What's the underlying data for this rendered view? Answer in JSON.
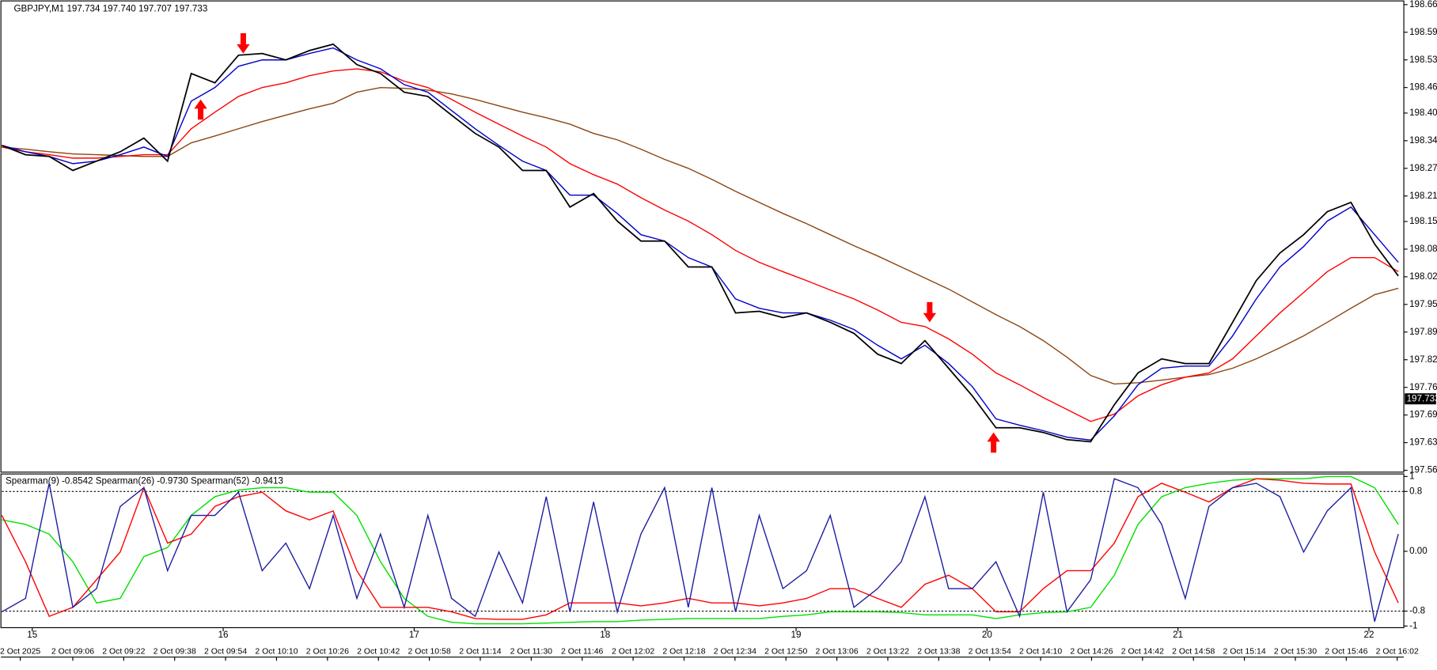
{
  "chart_data": [
    {
      "type": "line",
      "title": "GBPJPY,M1  197.734 197.740 197.707 197.733",
      "ylim": [
        197.565,
        198.66
      ],
      "yticks": [
        {
          "value": 198.66,
          "label": "198.660"
        },
        198.595,
        {
          "value": 198.53,
          "label": "198.530"
        },
        198.465,
        198.405,
        {
          "value": 198.34,
          "label": "198.340"
        },
        198.275,
        {
          "value": 198.21,
          "label": "198.210"
        },
        {
          "value": 198.15,
          "label": "198.150"
        },
        198.085,
        {
          "value": 198.02,
          "label": "198.020"
        },
        197.955,
        {
          "value": 197.89,
          "label": "197.890"
        },
        197.825,
        {
          "value": 197.76,
          "label": "197.760"
        },
        197.695,
        {
          "value": 197.63,
          "label": "197.630"
        },
        197.565
      ],
      "last_price": 197.733,
      "series": [
        {
          "color": "#8b4513",
          "values": [
            198.325,
            198.32,
            198.314,
            198.309,
            198.307,
            198.305,
            198.303,
            198.303,
            198.335,
            198.351,
            198.368,
            198.385,
            198.4,
            198.415,
            198.428,
            198.454,
            198.465,
            198.463,
            198.459,
            198.45,
            198.437,
            198.422,
            198.407,
            198.394,
            198.379,
            198.357,
            198.342,
            198.32,
            198.296,
            198.275,
            198.249,
            198.221,
            198.195,
            198.169,
            198.145,
            198.119,
            198.093,
            198.069,
            198.043,
            198.017,
            197.991,
            197.961,
            197.931,
            197.903,
            197.87,
            197.831,
            197.788,
            197.768,
            197.771,
            197.777,
            197.784,
            197.79,
            197.805,
            197.827,
            197.853,
            197.881,
            197.913,
            197.946,
            197.978,
            197.993
          ]
        },
        {
          "color": "#ff0000",
          "values": [
            198.325,
            198.314,
            198.307,
            198.299,
            198.299,
            198.303,
            198.307,
            198.307,
            198.368,
            198.407,
            198.444,
            198.465,
            198.476,
            198.493,
            198.504,
            198.509,
            198.502,
            198.48,
            198.465,
            198.437,
            198.407,
            198.379,
            198.351,
            198.325,
            198.286,
            198.26,
            198.238,
            198.206,
            198.177,
            198.151,
            198.119,
            198.082,
            198.054,
            198.032,
            198.011,
            197.989,
            197.968,
            197.942,
            197.913,
            197.903,
            197.874,
            197.838,
            197.794,
            197.766,
            197.736,
            197.708,
            197.68,
            197.697,
            197.74,
            197.766,
            197.784,
            197.794,
            197.827,
            197.881,
            197.935,
            197.983,
            198.032,
            198.065,
            198.065,
            198.032
          ]
        },
        {
          "color": "#0000cc",
          "values": [
            198.329,
            198.314,
            198.303,
            198.286,
            198.292,
            198.307,
            198.325,
            198.303,
            198.433,
            198.465,
            198.515,
            198.53,
            198.53,
            198.545,
            198.558,
            198.53,
            198.509,
            198.472,
            198.454,
            198.411,
            198.368,
            198.329,
            198.292,
            198.27,
            198.212,
            198.212,
            198.169,
            198.119,
            198.104,
            198.065,
            198.043,
            197.968,
            197.946,
            197.935,
            197.935,
            197.918,
            197.896,
            197.859,
            197.827,
            197.859,
            197.816,
            197.762,
            197.686,
            197.671,
            197.658,
            197.643,
            197.636,
            197.693,
            197.766,
            197.805,
            197.81,
            197.81,
            197.881,
            197.968,
            198.043,
            198.091,
            198.151,
            198.184,
            198.119,
            198.054
          ]
        },
        {
          "color": "#000000",
          "values": [
            198.329,
            198.307,
            198.303,
            198.27,
            198.292,
            198.314,
            198.346,
            198.292,
            198.498,
            198.476,
            198.541,
            198.545,
            198.53,
            198.552,
            198.567,
            198.519,
            198.498,
            198.454,
            198.444,
            198.4,
            198.357,
            198.325,
            198.27,
            198.27,
            198.184,
            198.216,
            198.151,
            198.104,
            198.104,
            198.043,
            198.043,
            197.935,
            197.939,
            197.924,
            197.935,
            197.913,
            197.887,
            197.838,
            197.816,
            197.87,
            197.805,
            197.74,
            197.665,
            197.665,
            197.654,
            197.637,
            197.632,
            197.719,
            197.794,
            197.827,
            197.816,
            197.816,
            197.913,
            198.011,
            198.076,
            198.119,
            198.173,
            198.195,
            198.097,
            198.022
          ]
        }
      ],
      "arrows": [
        {
          "index": 10.2,
          "value": 198.545,
          "dir": "down"
        },
        {
          "index": 8.4,
          "value": 198.437,
          "dir": "up"
        },
        {
          "index": 39.2,
          "value": 197.913,
          "dir": "down"
        },
        {
          "index": 41.9,
          "value": 197.654,
          "dir": "up"
        }
      ],
      "arrow_color": "#ff0000"
    },
    {
      "type": "line",
      "title": "Spearman(9) -0.8542  Spearman(26) -0.9730  Spearman(52) -0.9413",
      "ylim": [
        -1,
        1
      ],
      "yticks": [
        1,
        0.8,
        {
          "value": 0,
          "label": "0.00"
        },
        -0.8,
        -1
      ],
      "levels": [
        0.8,
        -0.8
      ],
      "series": [
        {
          "color": "#00e000",
          "values": [
            0.42,
            0.36,
            0.23,
            -0.14,
            -0.69,
            -0.63,
            -0.07,
            0.05,
            0.48,
            0.73,
            0.82,
            0.85,
            0.85,
            0.79,
            0.79,
            0.48,
            -0.14,
            -0.63,
            -0.87,
            -0.95,
            -0.97,
            -0.97,
            -0.97,
            -0.96,
            -0.95,
            -0.94,
            -0.94,
            -0.92,
            -0.91,
            -0.9,
            -0.9,
            -0.9,
            -0.9,
            -0.87,
            -0.85,
            -0.81,
            -0.81,
            -0.81,
            -0.82,
            -0.85,
            -0.85,
            -0.85,
            -0.9,
            -0.85,
            -0.82,
            -0.81,
            -0.75,
            -0.32,
            0.36,
            0.73,
            0.85,
            0.91,
            0.95,
            0.97,
            0.97,
            0.97,
            1.0,
            1.0,
            0.85,
            0.36
          ]
        },
        {
          "color": "#ff0000",
          "values": [
            0.48,
            -0.14,
            -0.87,
            -0.75,
            -0.38,
            -0.01,
            0.85,
            0.11,
            0.23,
            0.6,
            0.73,
            0.79,
            0.54,
            0.42,
            0.54,
            -0.26,
            -0.75,
            -0.75,
            -0.75,
            -0.81,
            -0.9,
            -0.91,
            -0.91,
            -0.85,
            -0.69,
            -0.69,
            -0.69,
            -0.73,
            -0.69,
            -0.63,
            -0.69,
            -0.69,
            -0.73,
            -0.69,
            -0.63,
            -0.5,
            -0.5,
            -0.63,
            -0.75,
            -0.44,
            -0.32,
            -0.5,
            -0.81,
            -0.81,
            -0.5,
            -0.26,
            -0.26,
            0.11,
            0.73,
            0.91,
            0.79,
            0.66,
            0.85,
            0.97,
            0.95,
            0.91,
            0.9,
            0.9,
            -0.01,
            -0.69
          ]
        },
        {
          "color": "#1e1ea0",
          "values": [
            -0.81,
            -0.63,
            0.91,
            -0.75,
            -0.5,
            0.6,
            0.85,
            -0.26,
            0.48,
            0.48,
            0.79,
            -0.26,
            0.11,
            -0.5,
            0.48,
            -0.63,
            0.23,
            -0.75,
            0.48,
            -0.63,
            -0.87,
            -0.01,
            -0.69,
            0.73,
            -0.81,
            0.66,
            -0.81,
            0.23,
            0.85,
            -0.75,
            0.85,
            -0.81,
            0.48,
            -0.5,
            -0.26,
            0.48,
            -0.75,
            -0.5,
            -0.14,
            0.73,
            -0.5,
            -0.5,
            -0.14,
            -0.87,
            0.79,
            -0.81,
            -0.38,
            0.97,
            0.85,
            0.36,
            -0.63,
            0.6,
            0.85,
            0.91,
            0.73,
            -0.01,
            0.54,
            0.85,
            -0.94,
            0.23
          ]
        }
      ]
    }
  ],
  "x_axis": {
    "day_labels": [
      "15",
      "16",
      "17",
      "18",
      "19",
      "20",
      "21",
      "22"
    ],
    "time_labels": [
      "2 Oct 2025",
      "2 Oct 09:06",
      "2 Oct 09:22",
      "2 Oct 09:38",
      "2 Oct 09:54",
      "2 Oct 10:10",
      "2 Oct 10:26",
      "2 Oct 10:42",
      "2 Oct 10:58",
      "2 Oct 11:14",
      "2 Oct 11:30",
      "2 Oct 11:46",
      "2 Oct 12:02",
      "2 Oct 12:18",
      "2 Oct 12:34",
      "2 Oct 12:50",
      "2 Oct 13:06",
      "2 Oct 13:22",
      "2 Oct 13:38",
      "2 Oct 13:54",
      "2 Oct 14:10",
      "2 Oct 14:26",
      "2 Oct 14:42",
      "2 Oct 14:58",
      "2 Oct 15:14",
      "2 Oct 15:30",
      "2 Oct 15:46",
      "2 Oct 16:02"
    ]
  }
}
